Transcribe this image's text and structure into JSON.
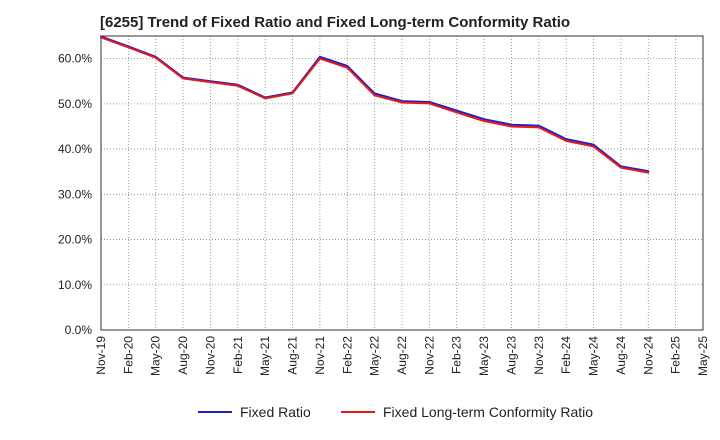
{
  "chart_data": {
    "type": "line",
    "title": "[6255]  Trend of Fixed Ratio and Fixed Long-term Conformity Ratio",
    "xlabel": "",
    "ylabel": "",
    "categories": [
      "Nov-19",
      "Feb-20",
      "May-20",
      "Aug-20",
      "Nov-20",
      "Feb-21",
      "May-21",
      "Aug-21",
      "Nov-21",
      "Feb-22",
      "May-22",
      "Aug-22",
      "Nov-22",
      "Feb-23",
      "May-23",
      "Aug-23",
      "Nov-23",
      "Feb-24",
      "May-24",
      "Aug-24",
      "Nov-24",
      "Feb-25",
      "May-25"
    ],
    "ylim": [
      0,
      65
    ],
    "yticks": [
      0,
      10,
      20,
      30,
      40,
      50,
      60
    ],
    "ytick_labels": [
      "0.0%",
      "10.0%",
      "20.0%",
      "30.0%",
      "40.0%",
      "50.0%",
      "60.0%"
    ],
    "grid": true,
    "legend_position": "bottom",
    "series": [
      {
        "name": "Fixed Ratio",
        "color": "#1f1fcc",
        "values": [
          64.9,
          62.7,
          60.4,
          55.8,
          55.0,
          54.2,
          51.4,
          52.5,
          60.4,
          58.4,
          52.3,
          50.6,
          50.4,
          48.5,
          46.6,
          45.4,
          45.2,
          42.2,
          41.0,
          36.2,
          35.1,
          null,
          null
        ]
      },
      {
        "name": "Fixed Long-term Conformity Ratio",
        "color": "#e61919",
        "values": [
          64.7,
          62.5,
          60.2,
          55.6,
          54.8,
          54.0,
          51.2,
          52.3,
          60.0,
          58.0,
          51.9,
          50.3,
          50.1,
          48.1,
          46.2,
          45.0,
          44.8,
          41.8,
          40.6,
          35.9,
          34.8,
          null,
          null
        ]
      }
    ]
  }
}
